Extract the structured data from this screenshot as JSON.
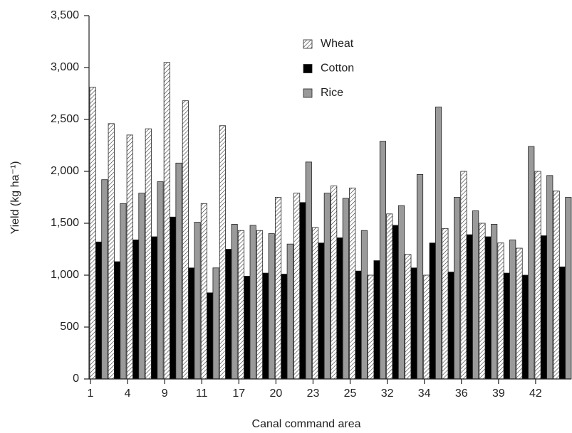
{
  "chart_data": {
    "type": "bar",
    "xlabel": "Canal command area",
    "ylabel": "Yield (kg ha⁻¹)",
    "categories": [
      "1",
      null,
      "4",
      null,
      "9",
      null,
      "11",
      null,
      "17",
      null,
      "20",
      null,
      "23",
      null,
      "25",
      null,
      "32",
      null,
      "34",
      null,
      "36",
      null,
      "39",
      null,
      "42",
      null
    ],
    "series": [
      {
        "name": "Wheat",
        "color": "#ffffff",
        "pattern": "hatch",
        "values": [
          2810,
          2460,
          2350,
          2410,
          3050,
          2680,
          1690,
          2440,
          1430,
          1430,
          1750,
          1790,
          1460,
          1860,
          1840,
          1000,
          1590,
          1200,
          1000,
          1450,
          2000,
          1500,
          1310,
          1260,
          2000,
          1810
        ]
      },
      {
        "name": "Cotton",
        "color": "#000000",
        "values": [
          1320,
          1130,
          1340,
          1370,
          1560,
          1070,
          830,
          1250,
          990,
          1020,
          1010,
          1700,
          1310,
          1360,
          1040,
          1140,
          1480,
          1070,
          1310,
          1030,
          1390,
          1370,
          1020,
          1000,
          1380,
          1080
        ]
      },
      {
        "name": "Rice",
        "color": "#9a9a9a",
        "values": [
          1920,
          1690,
          1790,
          1900,
          2080,
          1510,
          1070,
          1490,
          1480,
          1400,
          1300,
          2090,
          1790,
          1740,
          1430,
          2290,
          1670,
          1970,
          2620,
          1750,
          1620,
          1490,
          1340,
          2240,
          1960,
          1750
        ]
      }
    ],
    "ylim": [
      0,
      3500
    ],
    "yticks": [
      0,
      500,
      {
        "value": 1000,
        "label": "1,000"
      },
      {
        "value": 1500,
        "label": "1,500"
      },
      {
        "value": 2000,
        "label": "2,000"
      },
      {
        "value": 2500,
        "label": "2,500"
      },
      {
        "value": 3000,
        "label": "3,000"
      },
      {
        "value": 3500,
        "label": "3,500"
      }
    ],
    "grid": false,
    "legend": "top-center"
  }
}
